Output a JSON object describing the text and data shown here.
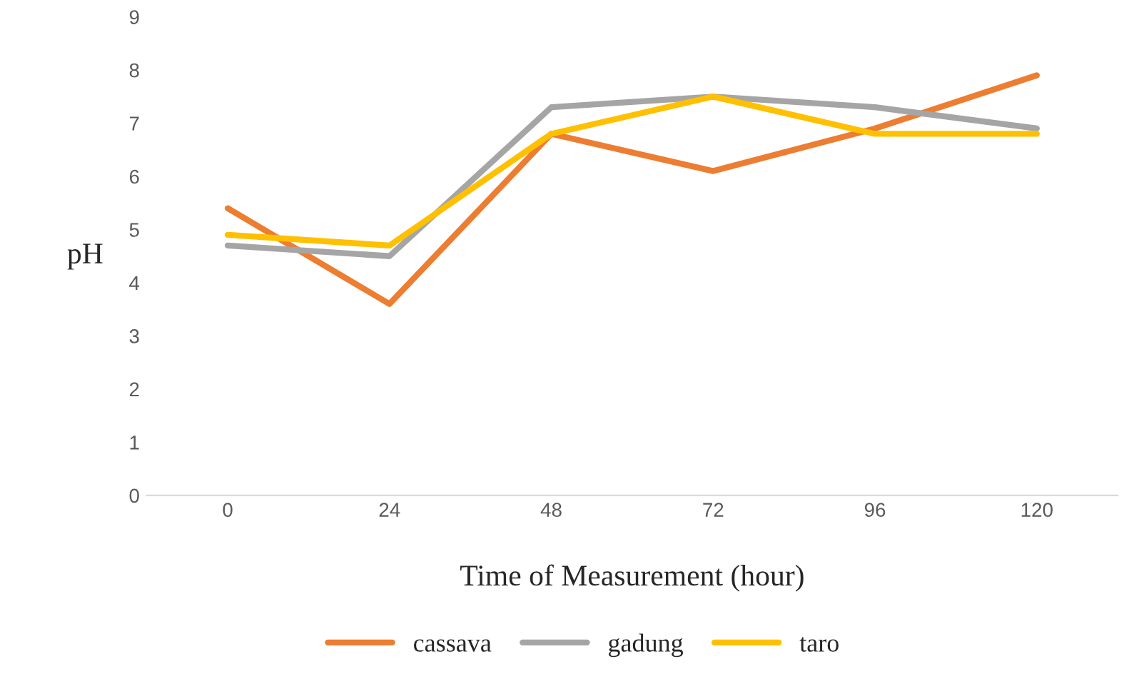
{
  "chart_data": {
    "type": "line",
    "xlabel": "Time of Measurement (hour)",
    "ylabel": "pH",
    "categories": [
      "0",
      "24",
      "48",
      "72",
      "96",
      "120"
    ],
    "series": [
      {
        "name": "cassava",
        "color": "#ed7d31",
        "values": [
          5.4,
          3.6,
          6.8,
          6.1,
          6.9,
          7.9
        ]
      },
      {
        "name": "gadung",
        "color": "#a5a5a5",
        "values": [
          4.7,
          4.5,
          7.3,
          7.5,
          7.3,
          6.9
        ]
      },
      {
        "name": "taro",
        "color": "#ffc000",
        "values": [
          4.9,
          4.7,
          6.8,
          7.5,
          6.8,
          6.8
        ]
      }
    ],
    "ylim": [
      0,
      9
    ],
    "yticks": [
      0,
      1,
      2,
      3,
      4,
      5,
      6,
      7,
      8,
      9
    ],
    "grid": false,
    "legend": "bottom",
    "marker": "none",
    "line_style": "solid"
  }
}
